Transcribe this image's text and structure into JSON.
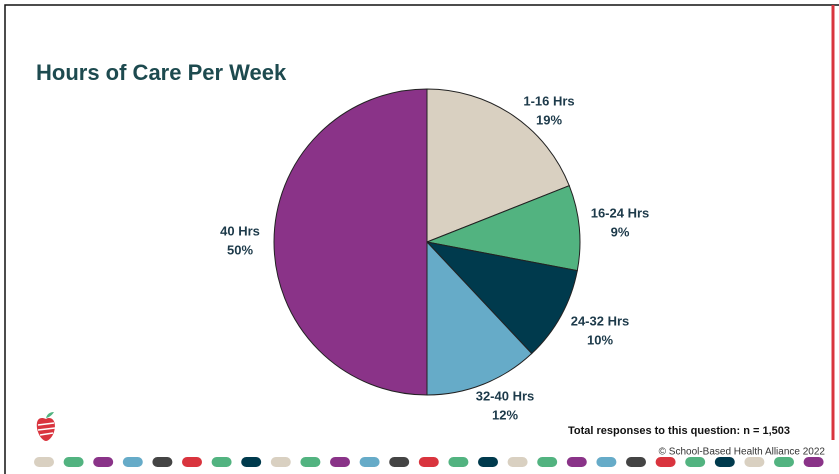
{
  "chart_data": {
    "type": "pie",
    "title": "Hours of Care Per Week",
    "categories": [
      "1-16 Hrs",
      "16-24 Hrs",
      "24-32 Hrs",
      "32-40 Hrs",
      "40 Hrs"
    ],
    "values": [
      19,
      9,
      10,
      12,
      50
    ],
    "value_labels": [
      "19%",
      "9%",
      "10%",
      "12%",
      "50%"
    ],
    "colors": [
      "#d9d0c1",
      "#52b380",
      "#003a4d",
      "#66abc8",
      "#8a3388"
    ],
    "note": "Total responses to this question: n = 1,503",
    "copyright": "© School-Based Health Alliance 2022"
  }
}
